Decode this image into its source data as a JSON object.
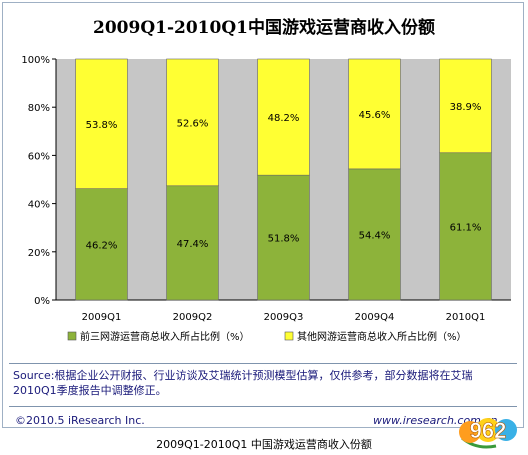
{
  "chart_data": {
    "type": "bar",
    "stacked": true,
    "title": "2009Q1-2010Q1中国游戏运营商收入份额",
    "categories": [
      "2009Q1",
      "2009Q2",
      "2009Q3",
      "2009Q4",
      "2010Q1"
    ],
    "series": [
      {
        "name": "前三网游运营商总收入所占比例（%）",
        "values": [
          46.2,
          47.4,
          51.8,
          54.4,
          61.1
        ],
        "labels": [
          "46.2%",
          "47.4%",
          "51.8%",
          "54.4%",
          "61.1%"
        ],
        "color": "#8db33a"
      },
      {
        "name": "其他网游运营商总收入所占比例（%）",
        "values": [
          53.8,
          52.6,
          48.2,
          45.6,
          38.9
        ],
        "labels": [
          "53.8%",
          "52.6%",
          "48.2%",
          "45.6%",
          "38.9%"
        ],
        "color": "#ffff33"
      }
    ],
    "ylim": [
      0,
      100
    ],
    "y_ticks": [
      "0%",
      "20%",
      "40%",
      "60%",
      "80%",
      "100%"
    ],
    "grid": false,
    "legend_position": "bottom",
    "plot_background": "#c6c6c6"
  },
  "source_text": "Source:根据企业公开财报、行业访谈及艾瑞统计预测模型估算，仅供参考，部分数据将在艾瑞2010Q1季度报告中调整修正。",
  "copyright": "©2010.5 iResearch Inc.",
  "website": "www.iresearch.com.cn",
  "caption": "2009Q1-2010Q1 中国游戏运营商收入份额",
  "logo_text": "962"
}
